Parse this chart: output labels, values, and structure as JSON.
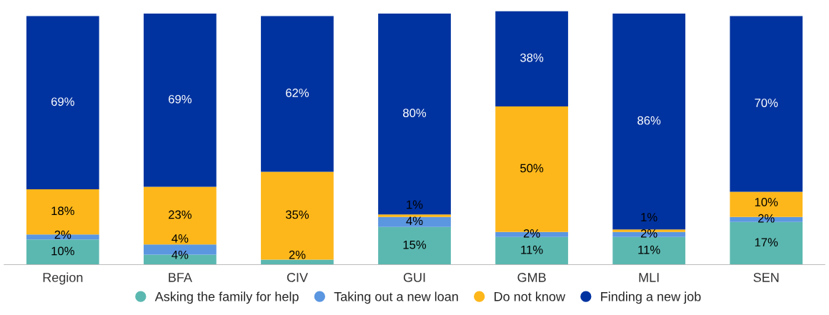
{
  "chart_data": {
    "type": "bar",
    "stacked": true,
    "legend": "bottom",
    "tick_labels": "x",
    "grid": false,
    "categories": [
      "Region",
      "BFA",
      "CIV",
      "GUI",
      "GMB",
      "MLI",
      "SEN"
    ],
    "series": [
      {
        "name": "Asking the family for help",
        "color": "#5bb8b0",
        "values": [
          10,
          4,
          2,
          15,
          11,
          11,
          17
        ],
        "value_labels": [
          "10%",
          "4%",
          "2%",
          "15%",
          "11%",
          "11%",
          "17%"
        ]
      },
      {
        "name": "Taking out a new loan",
        "color": "#5b96e0",
        "values": [
          2,
          4,
          null,
          4,
          2,
          2,
          2
        ],
        "value_labels": [
          "2%",
          "4%",
          null,
          "4%",
          "2%",
          "2%",
          "2%"
        ]
      },
      {
        "name": "Do not know",
        "color": "#fdb71a",
        "values": [
          18,
          23,
          35,
          1,
          50,
          1,
          10
        ],
        "value_labels": [
          "18%",
          "23%",
          "35%",
          "1%",
          "50%",
          "1%",
          "10%"
        ]
      },
      {
        "name": "Finding a new job",
        "color": "#0033a0",
        "values": [
          69,
          69,
          62,
          80,
          38,
          86,
          70
        ],
        "value_labels": [
          "69%",
          "69%",
          "62%",
          "80%",
          "38%",
          "86%",
          "70%"
        ]
      }
    ]
  }
}
